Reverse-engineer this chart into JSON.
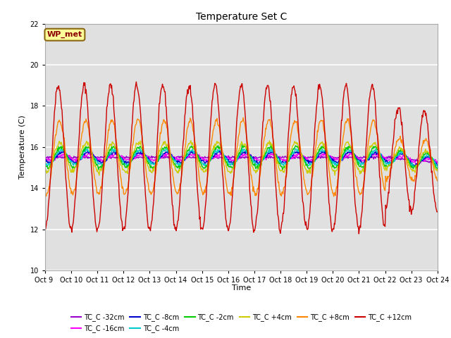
{
  "title": "Temperature Set C",
  "xlabel": "Time",
  "ylabel": "Temperature (C)",
  "ylim": [
    10,
    22
  ],
  "yticks": [
    10,
    12,
    14,
    16,
    18,
    20,
    22
  ],
  "xtick_labels": [
    "Oct 9 ",
    "Oct 10",
    "Oct 11",
    "Oct 12",
    "Oct 13",
    "Oct 14",
    "Oct 15",
    "Oct 16",
    "Oct 17",
    "Oct 18",
    "Oct 19",
    "Oct 20",
    "Oct 21",
    "Oct 22",
    "Oct 23",
    "Oct 24"
  ],
  "annotation_text": "WP_met",
  "annotation_color": "#8B0000",
  "annotation_bg": "#FFFF99",
  "background_color": "#E0E0E0",
  "series": [
    {
      "label": "TC_C -32cm",
      "color": "#9900CC"
    },
    {
      "label": "TC_C -16cm",
      "color": "#FF00FF"
    },
    {
      "label": "TC_C -8cm",
      "color": "#0000CC"
    },
    {
      "label": "TC_C -4cm",
      "color": "#00CCCC"
    },
    {
      "label": "TC_C -2cm",
      "color": "#00CC00"
    },
    {
      "label": "TC_C +4cm",
      "color": "#CCCC00"
    },
    {
      "label": "TC_C +8cm",
      "color": "#FF8800"
    },
    {
      "label": "TC_C +12cm",
      "color": "#CC0000"
    }
  ],
  "legend_ncol": 6
}
